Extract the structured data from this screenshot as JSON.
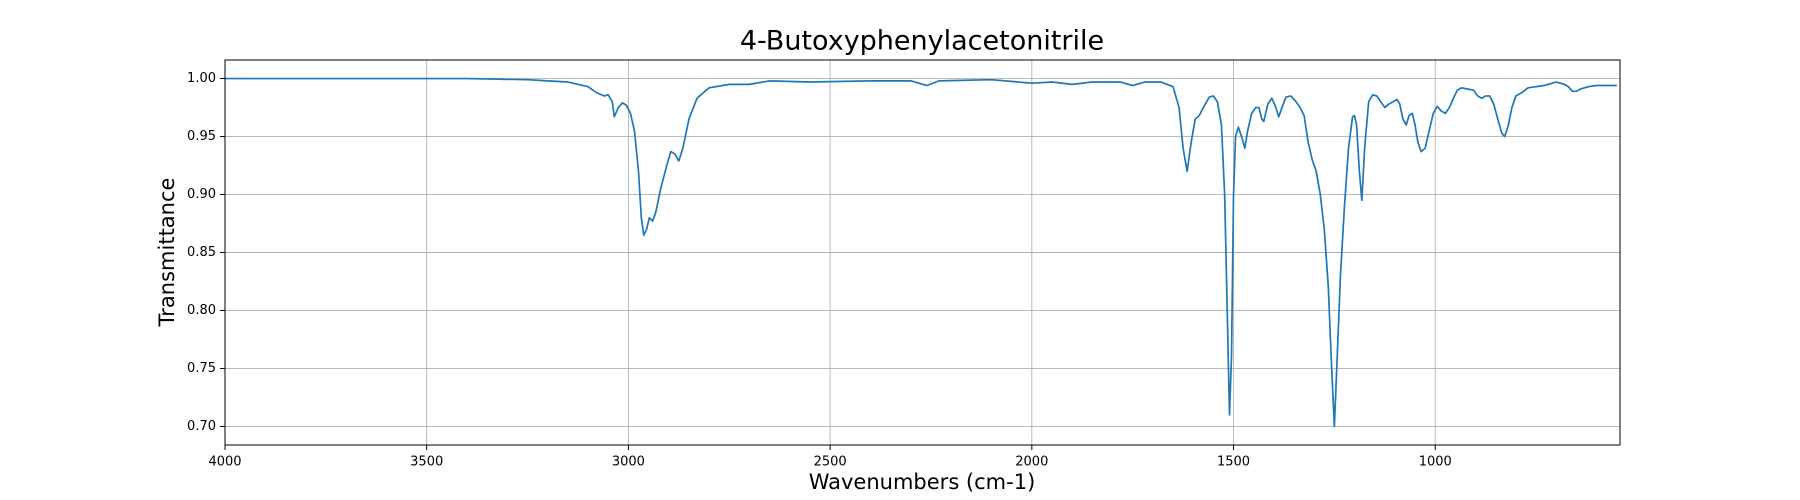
{
  "chart_data": {
    "type": "line",
    "title": "4-Butoxyphenylacetonitrile",
    "x_label": "Wavenumbers (cm-1)",
    "y_label": "Transmittance",
    "xlim": [
      4000,
      542
    ],
    "ylim": [
      0.684,
      1.016
    ],
    "xticks": [
      4000,
      3500,
      3000,
      2500,
      2000,
      1500,
      1000
    ],
    "yticks": [
      {
        "value": 0.7,
        "label": "0.70"
      },
      0.75,
      {
        "value": 0.8,
        "label": "0.80"
      },
      0.85,
      {
        "value": 0.9,
        "label": "0.90"
      },
      0.95,
      {
        "value": 1.0,
        "label": "1.00"
      }
    ],
    "grid": true,
    "series": [
      {
        "color": "#1f77b4",
        "x": [
          4000,
          3800,
          3600,
          3400,
          3250,
          3200,
          3150,
          3100,
          3080,
          3060,
          3050,
          3040,
          3035,
          3025,
          3015,
          3005,
          2995,
          2985,
          2975,
          2968,
          2962,
          2955,
          2948,
          2940,
          2932,
          2920,
          2905,
          2895,
          2885,
          2875,
          2865,
          2850,
          2830,
          2800,
          2750,
          2700,
          2650,
          2550,
          2400,
          2300,
          2260,
          2230,
          2100,
          2000,
          1950,
          1900,
          1850,
          1780,
          1750,
          1720,
          1680,
          1650,
          1635,
          1625,
          1615,
          1605,
          1595,
          1585,
          1575,
          1560,
          1550,
          1540,
          1530,
          1522,
          1515,
          1510,
          1505,
          1500,
          1495,
          1488,
          1480,
          1472,
          1465,
          1455,
          1445,
          1437,
          1430,
          1425,
          1415,
          1405,
          1395,
          1388,
          1380,
          1370,
          1358,
          1345,
          1335,
          1325,
          1315,
          1305,
          1295,
          1285,
          1275,
          1265,
          1258,
          1250,
          1243,
          1235,
          1225,
          1215,
          1205,
          1200,
          1195,
          1188,
          1182,
          1175,
          1165,
          1155,
          1145,
          1135,
          1125,
          1115,
          1105,
          1095,
          1088,
          1080,
          1072,
          1065,
          1057,
          1050,
          1043,
          1035,
          1025,
          1015,
          1005,
          995,
          985,
          975,
          965,
          955,
          945,
          935,
          920,
          905,
          895,
          885,
          875,
          865,
          855,
          845,
          835,
          828,
          820,
          810,
          800,
          785,
          770,
          750,
          730,
          710,
          700,
          690,
          680,
          670,
          660,
          650,
          640,
          620,
          600,
          570,
          550
        ],
        "values": [
          1.0,
          1.0,
          1.0,
          1.0,
          0.999,
          0.998,
          0.997,
          0.993,
          0.988,
          0.985,
          0.986,
          0.98,
          0.967,
          0.975,
          0.979,
          0.977,
          0.97,
          0.955,
          0.92,
          0.88,
          0.865,
          0.87,
          0.88,
          0.877,
          0.885,
          0.905,
          0.925,
          0.937,
          0.935,
          0.929,
          0.94,
          0.965,
          0.983,
          0.992,
          0.995,
          0.995,
          0.998,
          0.997,
          0.998,
          0.998,
          0.994,
          0.998,
          0.999,
          0.996,
          0.997,
          0.995,
          0.997,
          0.997,
          0.994,
          0.997,
          0.997,
          0.993,
          0.975,
          0.94,
          0.92,
          0.945,
          0.965,
          0.968,
          0.975,
          0.984,
          0.985,
          0.98,
          0.96,
          0.9,
          0.79,
          0.71,
          0.76,
          0.9,
          0.95,
          0.958,
          0.95,
          0.94,
          0.955,
          0.97,
          0.975,
          0.975,
          0.965,
          0.963,
          0.978,
          0.983,
          0.975,
          0.967,
          0.975,
          0.984,
          0.985,
          0.98,
          0.975,
          0.968,
          0.945,
          0.93,
          0.92,
          0.9,
          0.87,
          0.82,
          0.76,
          0.7,
          0.76,
          0.83,
          0.89,
          0.94,
          0.967,
          0.968,
          0.96,
          0.92,
          0.895,
          0.94,
          0.98,
          0.986,
          0.985,
          0.98,
          0.975,
          0.978,
          0.98,
          0.982,
          0.978,
          0.965,
          0.96,
          0.968,
          0.97,
          0.96,
          0.945,
          0.937,
          0.94,
          0.955,
          0.97,
          0.976,
          0.972,
          0.97,
          0.975,
          0.983,
          0.99,
          0.992,
          0.991,
          0.99,
          0.985,
          0.983,
          0.985,
          0.985,
          0.978,
          0.965,
          0.953,
          0.95,
          0.958,
          0.975,
          0.985,
          0.988,
          0.992,
          0.993,
          0.994,
          0.996,
          0.997,
          0.996,
          0.995,
          0.993,
          0.989,
          0.989,
          0.991,
          0.993,
          0.994,
          0.994,
          0.994
        ]
      }
    ]
  }
}
